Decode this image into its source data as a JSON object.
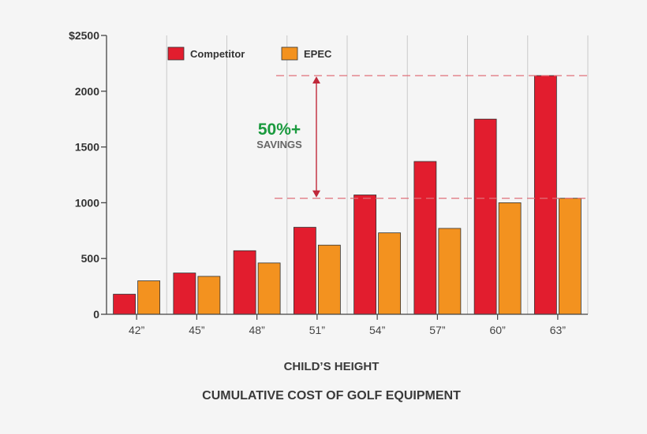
{
  "chart_data": {
    "type": "bar",
    "title": "CUMULATIVE COST OF GOLF EQUIPMENT",
    "xlabel": "CHILD’S HEIGHT",
    "ylabel": "",
    "categories": [
      "42”",
      "45”",
      "48”",
      "51”",
      "54”",
      "57”",
      "60”",
      "63”"
    ],
    "series": [
      {
        "name": "Competitor",
        "color": "#e21d2e",
        "values": [
          180,
          370,
          570,
          780,
          1070,
          1370,
          1750,
          2140
        ]
      },
      {
        "name": "EPEC",
        "color": "#f3921f",
        "values": [
          300,
          340,
          460,
          620,
          730,
          770,
          1000,
          1040
        ]
      }
    ],
    "ylim": [
      0,
      2500
    ],
    "yticks": [
      {
        "value": 0,
        "label": "0"
      },
      {
        "value": 500,
        "label": "500"
      },
      {
        "value": 1000,
        "label": "1000"
      },
      {
        "value": 1500,
        "label": "1500"
      },
      {
        "value": 2000,
        "label": "2000"
      },
      {
        "value": 2500,
        "label": "$2500"
      }
    ],
    "grid": "vertical",
    "legend_position": "top-left",
    "annotation": {
      "headline": "50%+",
      "subtext": "SAVINGS",
      "upper_value": 2140,
      "lower_value": 1040,
      "headline_color": "#1a9a3e",
      "line_color": "#e0707a"
    }
  }
}
